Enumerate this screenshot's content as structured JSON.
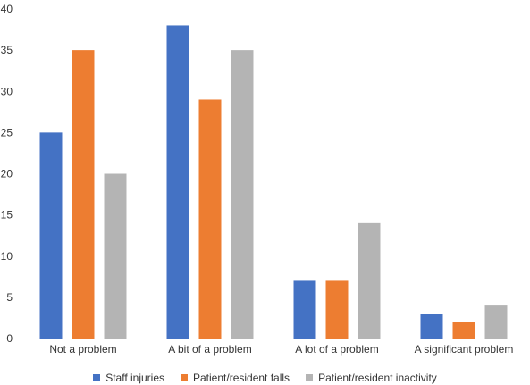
{
  "chart_data": {
    "type": "bar",
    "title": "",
    "xlabel": "",
    "ylabel": "",
    "ylim": [
      0,
      40
    ],
    "yticks": [
      0,
      5,
      10,
      15,
      20,
      25,
      30,
      35,
      40
    ],
    "grid": false,
    "legend_position": "bottom",
    "categories": [
      "Not a problem",
      "A bit of a problem",
      "A lot of a problem",
      "A significant problem"
    ],
    "series": [
      {
        "name": "Staff injuries",
        "color": "#4472c4",
        "values": [
          25,
          38,
          7,
          3
        ]
      },
      {
        "name": "Patient/resident falls",
        "color": "#ed7d31",
        "values": [
          35,
          29,
          7,
          2
        ]
      },
      {
        "name": "Patient/resident inactivity",
        "color": "#b4b4b4",
        "values": [
          20,
          35,
          14,
          4
        ]
      }
    ]
  }
}
